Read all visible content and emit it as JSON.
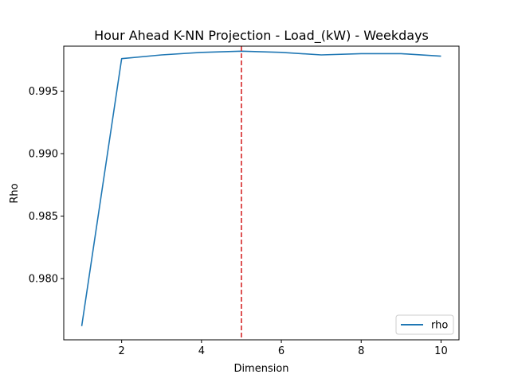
{
  "chart_data": {
    "type": "line",
    "title": "Hour Ahead K-NN Projection - Load_(kW) - Weekdays",
    "xlabel": "Dimension",
    "ylabel": "Rho",
    "xlim": [
      0.55,
      10.45
    ],
    "ylim": [
      0.9751,
      0.9986
    ],
    "x_ticks": [
      2,
      4,
      6,
      8,
      10
    ],
    "x_tick_labels": [
      "2",
      "4",
      "6",
      "8",
      "10"
    ],
    "y_ticks": [
      0.98,
      0.985,
      0.99,
      0.995
    ],
    "y_tick_labels": [
      "0.980",
      "0.985",
      "0.990",
      "0.995"
    ],
    "grid": false,
    "legend_position": "lower-right",
    "series": [
      {
        "name": "rho",
        "color": "#1f77b4",
        "x": [
          1,
          2,
          3,
          4,
          5,
          6,
          7,
          8,
          9,
          10
        ],
        "values": [
          0.9762,
          0.9976,
          0.9979,
          0.9981,
          0.9982,
          0.9981,
          0.9979,
          0.998,
          0.998,
          0.9978
        ]
      }
    ],
    "annotations": [
      {
        "type": "vline",
        "x": 5,
        "color": "#d62728",
        "style": "dashed"
      }
    ]
  }
}
